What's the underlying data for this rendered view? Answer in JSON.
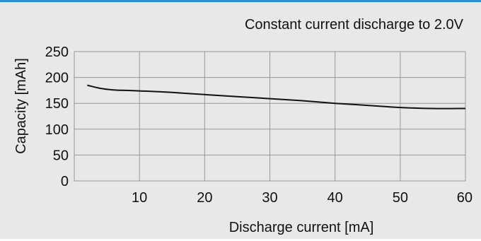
{
  "chart_data": {
    "type": "line",
    "title": "Constant current discharge to 2.0V",
    "xlabel": "Discharge current [mA]",
    "ylabel": "Capacity [mAh]",
    "xlim": [
      0,
      60
    ],
    "ylim": [
      0,
      250
    ],
    "x_ticks": [
      "10",
      "20",
      "30",
      "40",
      "50",
      "60"
    ],
    "y_ticks": [
      "0",
      "50",
      "100",
      "150",
      "200",
      "250"
    ],
    "grid": true,
    "series": [
      {
        "x": [
          2,
          4,
          6,
          8,
          10,
          12,
          15,
          20,
          25,
          30,
          35,
          40,
          45,
          50,
          55,
          60
        ],
        "values": [
          185,
          179,
          176,
          175,
          174,
          173,
          171,
          167,
          163,
          159,
          155,
          150,
          146,
          142,
          140,
          140
        ]
      }
    ]
  },
  "colors": {
    "accent_bar": "#2a8fd6",
    "background": "#e8e8e8",
    "line": "#111111",
    "grid": "#999999"
  }
}
